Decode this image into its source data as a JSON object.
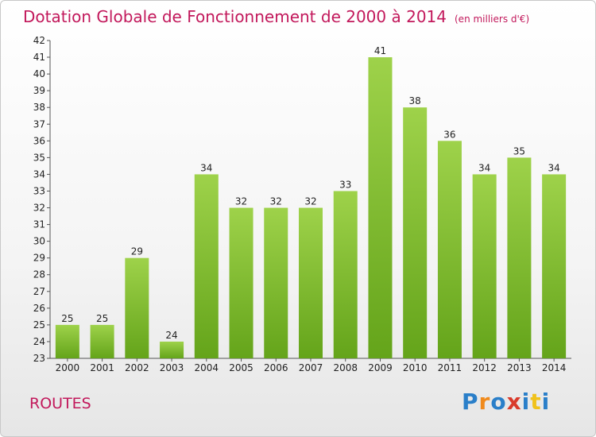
{
  "chart_data": {
    "type": "bar",
    "title": "Dotation Globale de Fonctionnement de 2000 à 2014",
    "unit": "(en milliers d'€)",
    "categories": [
      "2000",
      "2001",
      "2002",
      "2003",
      "2004",
      "2005",
      "2006",
      "2007",
      "2008",
      "2009",
      "2010",
      "2011",
      "2012",
      "2013",
      "2014"
    ],
    "values": [
      25,
      25,
      29,
      24,
      34,
      32,
      32,
      32,
      33,
      41,
      38,
      36,
      34,
      35,
      34
    ],
    "ylim": [
      23,
      42
    ],
    "grid": false,
    "legend": "none",
    "bar_color": "#7cbd2b"
  },
  "entity_label": "ROUTES",
  "brand": {
    "letters": [
      "P",
      "r",
      "o",
      "x",
      "i",
      "t",
      "i"
    ],
    "colors": [
      "#2a7fc9",
      "#f08a1c",
      "#2a7fc9",
      "#d93a2b",
      "#2a7fc9",
      "#f0c21c",
      "#2a7fc9"
    ]
  }
}
